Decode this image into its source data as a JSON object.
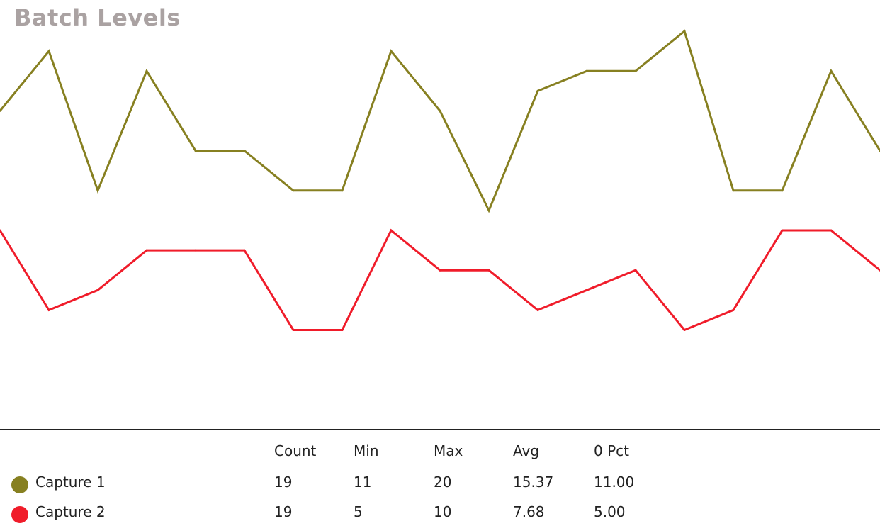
{
  "chart_data": {
    "type": "line",
    "title": "Batch Levels",
    "x": [
      1,
      2,
      3,
      4,
      5,
      6,
      7,
      8,
      9,
      10,
      11,
      12,
      13,
      14,
      15,
      16,
      17,
      18,
      19
    ],
    "ylim": [
      0,
      21
    ],
    "grid": false,
    "series": [
      {
        "name": "Capture 1",
        "color": "#878021",
        "values": [
          16,
          19,
          12,
          18,
          14,
          14,
          12,
          12,
          19,
          16,
          11,
          17,
          18,
          18,
          20,
          12,
          12,
          18,
          14
        ]
      },
      {
        "name": "Capture 2",
        "color": "#f01c2a",
        "values": [
          10,
          6,
          7,
          9,
          9,
          9,
          5,
          5,
          10,
          8,
          8,
          6,
          7,
          8,
          5,
          6,
          10,
          10,
          8
        ]
      }
    ]
  },
  "stats": {
    "headers": [
      "Count",
      "Min",
      "Max",
      "Avg",
      "0 Pct"
    ],
    "rows": [
      {
        "name": "Capture 1",
        "color": "#878021",
        "values": [
          "19",
          "11",
          "20",
          "15.37",
          "11.00"
        ]
      },
      {
        "name": "Capture 2",
        "color": "#f01c2a",
        "values": [
          "19",
          "5",
          "10",
          "7.68",
          "5.00"
        ]
      }
    ]
  }
}
